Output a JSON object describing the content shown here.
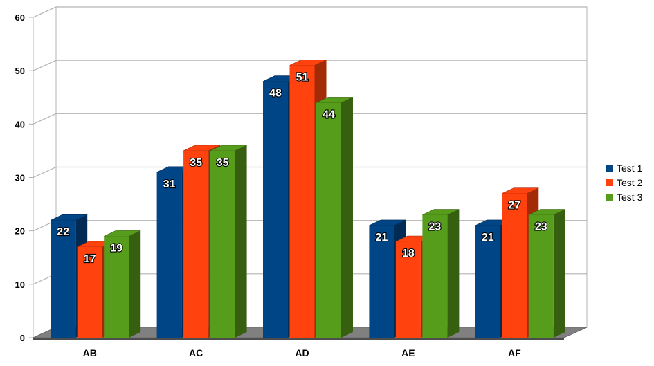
{
  "chart_data": {
    "type": "bar",
    "style": "3d-clustered-column",
    "categories": [
      "AB",
      "AC",
      "AD",
      "AE",
      "AF"
    ],
    "series": [
      {
        "name": "Test 1",
        "values": [
          22,
          31,
          48,
          21,
          21
        ],
        "color": "#004586",
        "side_color": "#002b54"
      },
      {
        "name": "Test 2",
        "values": [
          17,
          35,
          51,
          18,
          27
        ],
        "color": "#ff420e",
        "side_color": "#a32a07"
      },
      {
        "name": "Test 3",
        "values": [
          19,
          35,
          44,
          23,
          23
        ],
        "color": "#579d1c",
        "side_color": "#365f10"
      }
    ],
    "title": "",
    "xlabel": "",
    "ylabel": "",
    "ylim": [
      0,
      60
    ],
    "yticks": [
      0,
      10,
      20,
      30,
      40,
      50,
      60
    ],
    "grid": true,
    "data_labels": true,
    "legend_position": "right"
  }
}
